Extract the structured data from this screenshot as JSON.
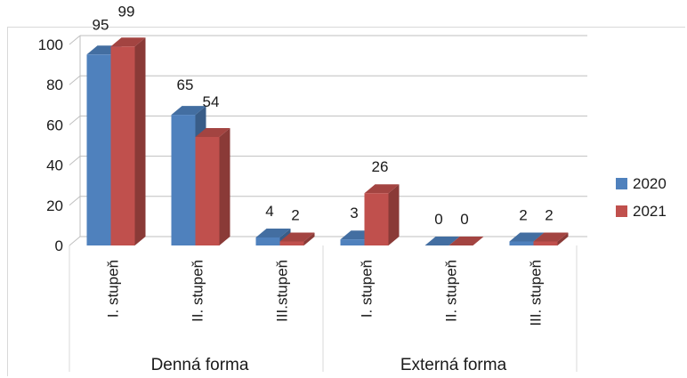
{
  "chart_data": {
    "type": "bar",
    "groups": [
      {
        "label": "Denná forma",
        "categories": [
          "I. stupeň",
          "II. stupeň",
          "III.stupeň"
        ]
      },
      {
        "label": "Externá forma",
        "categories": [
          "I. stupeň",
          "II. stupeň",
          "III. stupeň"
        ]
      }
    ],
    "categories": [
      "I. stupeň",
      "II. stupeň",
      "III.stupeň",
      "I. stupeň",
      "II. stupeň",
      "III. stupeň"
    ],
    "series": [
      {
        "name": "2020",
        "values": [
          95,
          65,
          4,
          3,
          0,
          2
        ],
        "color": "#4f81bd"
      },
      {
        "name": "2021",
        "values": [
          99,
          54,
          2,
          26,
          0,
          2
        ],
        "color": "#c0504d"
      }
    ],
    "yticks": [
      0,
      20,
      40,
      60,
      80,
      100
    ],
    "ylim": [
      0,
      100
    ],
    "grid": true,
    "legend": "right"
  }
}
